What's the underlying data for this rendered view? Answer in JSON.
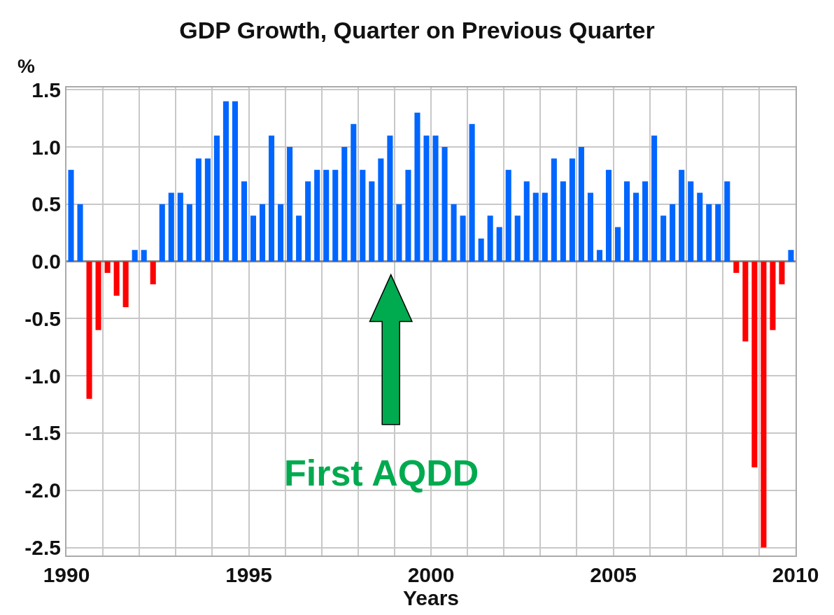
{
  "chart_data": {
    "type": "bar",
    "title": "GDP Growth, Quarter on Previous Quarter",
    "xlabel": "Years",
    "ylabel": "%",
    "x": [
      1990.125,
      1990.375,
      1990.625,
      1990.875,
      1991.125,
      1991.375,
      1991.625,
      1991.875,
      1992.125,
      1992.375,
      1992.625,
      1992.875,
      1993.125,
      1993.375,
      1993.625,
      1993.875,
      1994.125,
      1994.375,
      1994.625,
      1994.875,
      1995.125,
      1995.375,
      1995.625,
      1995.875,
      1996.125,
      1996.375,
      1996.625,
      1996.875,
      1997.125,
      1997.375,
      1997.625,
      1997.875,
      1998.125,
      1998.375,
      1998.625,
      1998.875,
      1999.125,
      1999.375,
      1999.625,
      1999.875,
      2000.125,
      2000.375,
      2000.625,
      2000.875,
      2001.125,
      2001.375,
      2001.625,
      2001.875,
      2002.125,
      2002.375,
      2002.625,
      2002.875,
      2003.125,
      2003.375,
      2003.625,
      2003.875,
      2004.125,
      2004.375,
      2004.625,
      2004.875,
      2005.125,
      2005.375,
      2005.625,
      2005.875,
      2006.125,
      2006.375,
      2006.625,
      2006.875,
      2007.125,
      2007.375,
      2007.625,
      2007.875,
      2008.125,
      2008.375,
      2008.625,
      2008.875,
      2009.125,
      2009.375,
      2009.625,
      2009.875
    ],
    "values": [
      0.8,
      0.5,
      -1.2,
      -0.6,
      -0.1,
      -0.3,
      -0.4,
      0.1,
      0.1,
      -0.2,
      0.5,
      0.6,
      0.6,
      0.5,
      0.9,
      0.9,
      1.1,
      1.4,
      1.4,
      0.7,
      0.4,
      0.5,
      1.1,
      0.5,
      1.0,
      0.4,
      0.7,
      0.8,
      0.8,
      0.8,
      1.0,
      1.2,
      0.8,
      0.7,
      0.9,
      1.1,
      0.5,
      0.8,
      1.3,
      1.1,
      1.1,
      1.0,
      0.5,
      0.4,
      1.2,
      0.2,
      0.4,
      0.3,
      0.8,
      0.4,
      0.7,
      0.6,
      0.6,
      0.9,
      0.7,
      0.9,
      1.0,
      0.6,
      0.1,
      0.8,
      0.3,
      0.7,
      0.6,
      0.7,
      1.1,
      0.4,
      0.5,
      0.8,
      0.7,
      0.6,
      0.5,
      0.5,
      0.7,
      -0.1,
      -0.7,
      -1.8,
      -2.5,
      -0.6,
      -0.2,
      0.1
    ],
    "colors": [
      "#0066ff",
      "#0066ff",
      "#ff0000",
      "#ff0000",
      "#ff0000",
      "#ff0000",
      "#ff0000",
      "#0066ff",
      "#0066ff",
      "#ff0000",
      "#0066ff",
      "#0066ff",
      "#0066ff",
      "#0066ff",
      "#0066ff",
      "#0066ff",
      "#0066ff",
      "#0066ff",
      "#0066ff",
      "#0066ff",
      "#0066ff",
      "#0066ff",
      "#0066ff",
      "#0066ff",
      "#0066ff",
      "#0066ff",
      "#0066ff",
      "#0066ff",
      "#0066ff",
      "#0066ff",
      "#0066ff",
      "#0066ff",
      "#0066ff",
      "#0066ff",
      "#0066ff",
      "#0066ff",
      "#0066ff",
      "#0066ff",
      "#0066ff",
      "#0066ff",
      "#0066ff",
      "#0066ff",
      "#0066ff",
      "#0066ff",
      "#0066ff",
      "#0066ff",
      "#0066ff",
      "#0066ff",
      "#0066ff",
      "#0066ff",
      "#0066ff",
      "#0066ff",
      "#0066ff",
      "#0066ff",
      "#0066ff",
      "#0066ff",
      "#0066ff",
      "#0066ff",
      "#0066ff",
      "#0066ff",
      "#0066ff",
      "#0066ff",
      "#0066ff",
      "#0066ff",
      "#0066ff",
      "#0066ff",
      "#0066ff",
      "#0066ff",
      "#0066ff",
      "#0066ff",
      "#0066ff",
      "#0066ff",
      "#0066ff",
      "#ff0000",
      "#ff0000",
      "#ff0000",
      "#ff0000",
      "#ff0000",
      "#ff0000",
      "#0066ff"
    ],
    "xlim": [
      1990,
      2010
    ],
    "ylim": [
      -2.57,
      1.52
    ],
    "xticks": [
      1990,
      {
        "value": 1991,
        "label": null
      },
      {
        "value": 1992,
        "label": null
      },
      {
        "value": 1993,
        "label": null
      },
      {
        "value": 1994,
        "label": null
      },
      1995,
      {
        "value": 1996,
        "label": null
      },
      {
        "value": 1997,
        "label": null
      },
      {
        "value": 1998,
        "label": null
      },
      {
        "value": 1999,
        "label": null
      },
      2000,
      {
        "value": 2001,
        "label": null
      },
      {
        "value": 2002,
        "label": null
      },
      {
        "value": 2003,
        "label": null
      },
      {
        "value": 2004,
        "label": null
      },
      2005,
      {
        "value": 2006,
        "label": null
      },
      {
        "value": 2007,
        "label": null
      },
      {
        "value": 2008,
        "label": null
      },
      {
        "value": 2009,
        "label": null
      },
      2010
    ],
    "yticks": [
      {
        "value": 1.5,
        "label": "1.5"
      },
      {
        "value": 1.0,
        "label": "1.0"
      },
      {
        "value": 0.5,
        "label": "0.5"
      },
      {
        "value": 0,
        "label": "0.0"
      },
      {
        "value": -0.5,
        "label": "-0.5"
      },
      {
        "value": -1.0,
        "label": "-1.0"
      },
      {
        "value": -1.5,
        "label": "-1.5"
      },
      {
        "value": -2.0,
        "label": "-2.0"
      },
      {
        "value": -2.5,
        "label": "-2.5"
      }
    ],
    "grid": true,
    "legend": false,
    "annotations": [
      "First AQDD"
    ]
  }
}
